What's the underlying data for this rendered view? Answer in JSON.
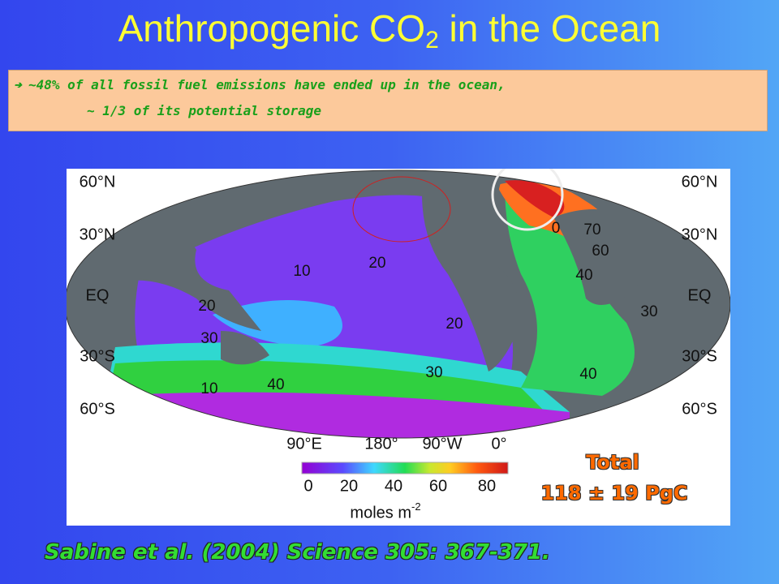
{
  "header": {
    "title": [
      "Anthropogenic CO",
      "2",
      " in the Ocean"
    ]
  },
  "bullet": {
    "lines": [
      "~48% of all fossil fuel emissions have ended up in the ocean,",
      "~ 1/3 of its potential storage"
    ]
  },
  "map": {
    "lat_labels_left": [
      "60°N",
      "30°N",
      "EQ",
      "30°S",
      "60°S"
    ],
    "lat_labels_right": [
      "60°N",
      "30°N",
      "EQ",
      "30°S",
      "60°S"
    ],
    "lon_labels": [
      "90°E",
      "180°",
      "90°W",
      "0°"
    ],
    "contour_labels": [
      "10",
      "20",
      "20",
      "30",
      "20",
      "30",
      "40",
      "10",
      "0",
      "70",
      "60",
      "40",
      "30",
      "40"
    ],
    "colorbar_ticks": [
      "0",
      "20",
      "40",
      "60",
      "80"
    ],
    "unit": [
      "moles m",
      "-2"
    ]
  },
  "total": {
    "label": "Total",
    "value": "118 ± 19 PgC"
  },
  "citation": "Sabine et al. (2004) Science 305: 367-371."
}
